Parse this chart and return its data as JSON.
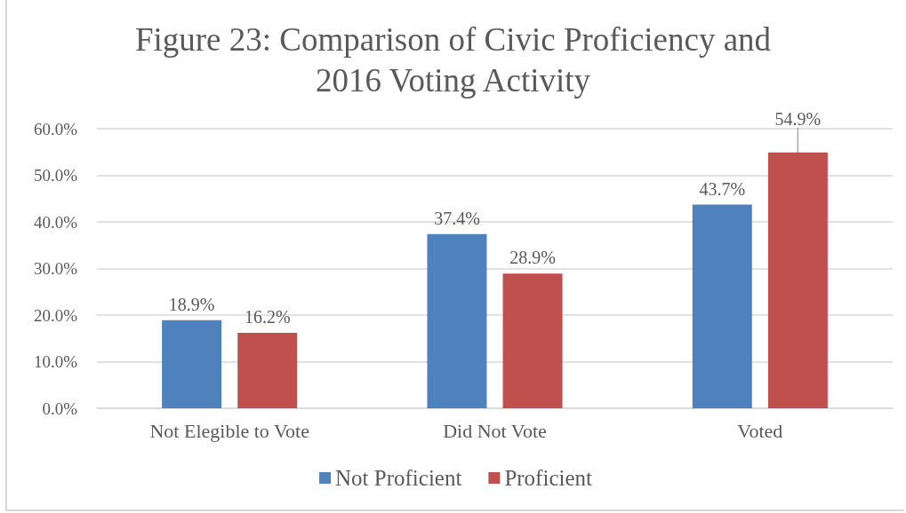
{
  "chart_data": {
    "type": "bar",
    "title": "Figure 23: Comparison of Civic Proficiency and 2016 Voting Activity",
    "categories": [
      "Not Elegible to Vote",
      "Did Not Vote",
      "Voted"
    ],
    "series": [
      {
        "name": "Not Proficient",
        "color": "#4f81bd",
        "values": [
          18.9,
          37.4,
          43.7
        ],
        "value_labels": [
          "18.9%",
          "37.4%",
          "43.7%"
        ]
      },
      {
        "name": "Proficient",
        "color": "#c0504d",
        "values": [
          16.2,
          28.9,
          54.9
        ],
        "value_labels": [
          "16.2%",
          "28.9%",
          "54.9%"
        ]
      }
    ],
    "ylim": [
      0,
      60
    ],
    "yticks": [
      {
        "value": 0,
        "label": "0.0%"
      },
      {
        "value": 10,
        "label": "10.0%"
      },
      {
        "value": 20,
        "label": "20.0%"
      },
      {
        "value": 30,
        "label": "30.0%"
      },
      {
        "value": 40,
        "label": "40.0%"
      },
      {
        "value": 50,
        "label": "50.0%"
      },
      {
        "value": 60,
        "label": "60.0%"
      }
    ],
    "grid": "y",
    "legend": "bottom"
  }
}
